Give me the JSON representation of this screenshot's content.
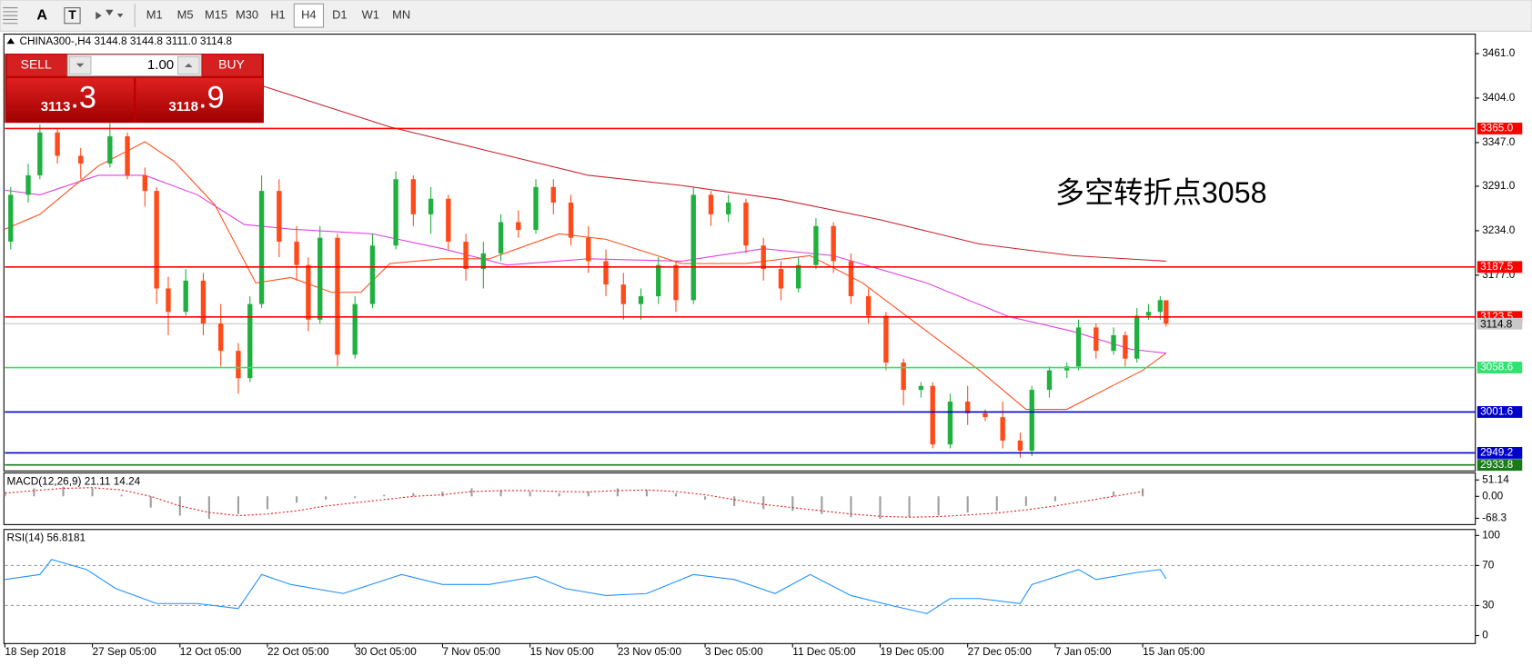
{
  "toolbar": {
    "text_tool": "A",
    "label_tool": "T",
    "timeframes": [
      "M1",
      "M5",
      "M15",
      "M30",
      "H1",
      "H4",
      "D1",
      "W1",
      "MN"
    ],
    "active": "H4"
  },
  "trade_panel": {
    "sell": "SELL",
    "buy": "BUY",
    "volume": "1.00",
    "sell_big": "3113",
    "sell_small": ".3",
    "buy_big": "3118",
    "buy_small": ".9"
  },
  "chart_data": [
    {
      "type": "candlestick",
      "title": "CHINA300-,H4  3144.8 3144.8 3111.0 3114.8",
      "annotation": "多空转折点3058",
      "xlim": [
        0,
        252
      ],
      "ylim": [
        2926,
        3486
      ],
      "up_color": "#20b040",
      "down_color": "#ff4a1a",
      "x": [
        1,
        4,
        6,
        9,
        13,
        18,
        21,
        24,
        26,
        28,
        31,
        34,
        37,
        40,
        42,
        44,
        47,
        50,
        52,
        54,
        57,
        60,
        63,
        67,
        70,
        73,
        76,
        79,
        82,
        85,
        88,
        91,
        94,
        97,
        100,
        103,
        106,
        109,
        112,
        115,
        118,
        121,
        124,
        127,
        130,
        133,
        136,
        139,
        142,
        145,
        148,
        151,
        154,
        157,
        159,
        162,
        165,
        168,
        171,
        174,
        176,
        179,
        182,
        184,
        187,
        190,
        192,
        194,
        196,
        198,
        199
      ],
      "open": [
        3220,
        3280,
        3305,
        3360,
        3330,
        3320,
        3355,
        3305,
        3285,
        3160,
        3130,
        3170,
        3115,
        3080,
        3045,
        3140,
        3285,
        3220,
        3190,
        3120,
        3225,
        3075,
        3140,
        3215,
        3300,
        3255,
        3275,
        3220,
        3185,
        3205,
        3245,
        3235,
        3290,
        3270,
        3225,
        3195,
        3165,
        3140,
        3150,
        3190,
        3145,
        3280,
        3255,
        3270,
        3215,
        3185,
        3160,
        3190,
        3240,
        3195,
        3150,
        3125,
        3065,
        3030,
        3035,
        2960,
        3015,
        3000,
        2995,
        2965,
        2952,
        3030,
        3055,
        3060,
        3110,
        3080,
        3100,
        3070,
        3125,
        3130,
        3144.8
      ],
      "high": [
        3290,
        3320,
        3370,
        3365,
        3340,
        3372,
        3360,
        3315,
        3290,
        3175,
        3185,
        3180,
        3140,
        3090,
        3150,
        3305,
        3300,
        3240,
        3200,
        3240,
        3230,
        3150,
        3230,
        3310,
        3305,
        3290,
        3280,
        3230,
        3220,
        3255,
        3260,
        3300,
        3300,
        3280,
        3240,
        3210,
        3180,
        3160,
        3200,
        3195,
        3290,
        3285,
        3280,
        3275,
        3225,
        3195,
        3200,
        3250,
        3245,
        3205,
        3160,
        3130,
        3070,
        3040,
        3040,
        3025,
        3035,
        3005,
        3015,
        2975,
        3035,
        3060,
        3065,
        3120,
        3115,
        3110,
        3105,
        3135,
        3140,
        3150,
        3144.8
      ],
      "low": [
        3210,
        3270,
        3300,
        3320,
        3300,
        3315,
        3300,
        3265,
        3140,
        3100,
        3125,
        3100,
        3060,
        3025,
        3040,
        3135,
        3200,
        3170,
        3105,
        3115,
        3060,
        3070,
        3135,
        3210,
        3240,
        3230,
        3210,
        3170,
        3160,
        3195,
        3225,
        3230,
        3255,
        3215,
        3180,
        3150,
        3120,
        3120,
        3140,
        3130,
        3140,
        3240,
        3245,
        3205,
        3170,
        3145,
        3155,
        3185,
        3180,
        3140,
        3115,
        3055,
        3010,
        3020,
        2955,
        2955,
        2985,
        2990,
        2955,
        2943,
        2945,
        3020,
        3045,
        3055,
        3070,
        3075,
        3060,
        3065,
        3120,
        3120,
        3111
      ],
      "close": [
        3280,
        3305,
        3360,
        3330,
        3320,
        3355,
        3305,
        3285,
        3160,
        3130,
        3170,
        3115,
        3080,
        3045,
        3140,
        3285,
        3220,
        3190,
        3120,
        3225,
        3075,
        3140,
        3215,
        3300,
        3255,
        3275,
        3220,
        3185,
        3205,
        3245,
        3235,
        3290,
        3270,
        3225,
        3195,
        3165,
        3140,
        3150,
        3190,
        3145,
        3280,
        3255,
        3270,
        3215,
        3185,
        3160,
        3190,
        3240,
        3195,
        3150,
        3125,
        3065,
        3030,
        3035,
        2960,
        3015,
        3000,
        2995,
        2965,
        2952,
        3030,
        3055,
        3060,
        3110,
        3080,
        3100,
        3070,
        3125,
        3130,
        3145,
        3114.8
      ],
      "series": [
        {
          "color": "#c8202a",
          "x": [
            44,
            66,
            83,
            100,
            116,
            133,
            150,
            167,
            183,
            199
          ],
          "values": [
            3420,
            3367,
            3336,
            3305,
            3292,
            3274,
            3248,
            3217,
            3202,
            3195
          ]
        },
        {
          "color": "#e040e0",
          "x": [
            0,
            6,
            16,
            24,
            33,
            41,
            49,
            63,
            75,
            86,
            100,
            116,
            130,
            142,
            158,
            172,
            183,
            193,
            199
          ],
          "values": [
            3286,
            3280,
            3305,
            3305,
            3280,
            3242,
            3236,
            3230,
            3211,
            3190,
            3198,
            3195,
            3211,
            3202,
            3167,
            3124,
            3105,
            3082,
            3077
          ]
        },
        {
          "color": "#ff4d1a",
          "x": [
            0,
            6,
            16,
            24,
            29,
            36,
            43,
            49,
            56,
            61,
            66,
            75,
            83,
            95,
            103,
            116,
            127,
            138,
            147,
            158,
            167,
            175,
            182,
            190,
            195,
            199
          ],
          "values": [
            3236,
            3255,
            3317,
            3348,
            3323,
            3267,
            3167,
            3174,
            3155,
            3155,
            3192,
            3198,
            3198,
            3230,
            3223,
            3192,
            3192,
            3202,
            3167,
            3105,
            3055,
            3005,
            3005,
            3036,
            3055,
            3077
          ]
        }
      ],
      "yticks": [
        {
          "value": 3461,
          "label": "3461.0"
        },
        {
          "value": 3404,
          "label": "3404.0"
        },
        {
          "value": 3347,
          "label": "3347.0"
        },
        {
          "value": 3291,
          "label": "3291.0"
        },
        {
          "value": 3234,
          "label": "3234.0"
        },
        {
          "value": 3177,
          "label": "3177.0"
        }
      ],
      "levels": [
        {
          "value": 3365,
          "label": "3365.0",
          "color": "#ff0000"
        },
        {
          "value": 3187.5,
          "label": "3187.5",
          "color": "#ff0000"
        },
        {
          "value": 3123.5,
          "label": "3123.5",
          "color": "#ff0000"
        },
        {
          "value": 3058.6,
          "label": "3058.6",
          "color": "#33e070"
        },
        {
          "value": 3001.6,
          "label": "3001.6",
          "color": "#0000cc"
        },
        {
          "value": 2949.2,
          "label": "2949.2",
          "color": "#0000cc"
        },
        {
          "value": 2933.8,
          "label": "2933.8",
          "color": "#1a7a1a"
        }
      ],
      "last_price": 3114.8
    },
    {
      "type": "macd",
      "title": "MACD(12,26,9) 21.11 14.24",
      "xlim": [
        0,
        252
      ],
      "ylim": [
        -88,
        73
      ],
      "x": [
        0,
        5,
        10,
        15,
        20,
        25,
        30,
        35,
        40,
        45,
        50,
        55,
        60,
        65,
        70,
        75,
        80,
        85,
        90,
        95,
        100,
        105,
        110,
        115,
        120,
        125,
        130,
        135,
        140,
        145,
        150,
        155,
        160,
        165,
        170,
        175,
        180,
        185,
        190,
        195
      ],
      "main": [
        15,
        25,
        30,
        25,
        5,
        -35,
        -60,
        -70,
        -55,
        -40,
        -20,
        -10,
        -5,
        5,
        10,
        15,
        25,
        20,
        15,
        10,
        15,
        25,
        20,
        10,
        -10,
        -30,
        -40,
        -45,
        -55,
        -65,
        -70,
        -65,
        -60,
        -50,
        -45,
        -30,
        -15,
        0,
        15,
        25
      ],
      "signal": [
        10,
        18,
        25,
        27,
        20,
        0,
        -30,
        -50,
        -60,
        -55,
        -45,
        -30,
        -20,
        -10,
        0,
        5,
        15,
        18,
        18,
        15,
        14,
        18,
        20,
        15,
        5,
        -10,
        -25,
        -35,
        -45,
        -55,
        -62,
        -65,
        -63,
        -58,
        -52,
        -42,
        -30,
        -15,
        0,
        15
      ],
      "color": "#a0a0a0",
      "signal_color": "#e02020",
      "yticks": [
        51.14,
        {
          "value": 0,
          "label": "0.00"
        },
        -68.3
      ]
    },
    {
      "type": "line",
      "title": "RSI(14) 56.8181",
      "xlim": [
        0,
        252
      ],
      "ylim": [
        -8,
        106
      ],
      "color": "#1e90ff",
      "x": [
        0,
        6,
        8,
        14,
        19,
        26,
        33,
        40,
        44,
        49,
        58,
        68,
        75,
        83,
        91,
        96,
        103,
        110,
        118,
        125,
        132,
        138,
        145,
        152,
        158,
        162,
        167,
        174,
        176,
        184,
        187,
        194,
        198,
        199
      ],
      "values": [
        56,
        61,
        76,
        66,
        47,
        32,
        32,
        27,
        61,
        51,
        42,
        61,
        51,
        51,
        59,
        47,
        40,
        42,
        61,
        56,
        42,
        61,
        40,
        30,
        22,
        37,
        37,
        32,
        51,
        66,
        56,
        63,
        66,
        56.8
      ],
      "yticks": [
        100,
        70,
        30,
        0
      ],
      "levels": [
        70,
        30
      ],
      "xticks": [
        {
          "value": 0,
          "label": "18 Sep 2018"
        },
        {
          "value": 15,
          "label": "27 Sep 05:00"
        },
        {
          "value": 30,
          "label": "12 Oct 05:00"
        },
        {
          "value": 45,
          "label": "22 Oct 05:00"
        },
        {
          "value": 60,
          "label": "30 Oct 05:00"
        },
        {
          "value": 75,
          "label": "7 Nov 05:00"
        },
        {
          "value": 90,
          "label": "15 Nov 05:00"
        },
        {
          "value": 105,
          "label": "23 Nov 05:00"
        },
        {
          "value": 120,
          "label": "3 Dec 05:00"
        },
        {
          "value": 135,
          "label": "11 Dec 05:00"
        },
        {
          "value": 150,
          "label": "19 Dec 05:00"
        },
        {
          "value": 165,
          "label": "27 Dec 05:00"
        },
        {
          "value": 180,
          "label": "7 Jan 05:00"
        },
        {
          "value": 195,
          "label": "15 Jan 05:00"
        }
      ]
    }
  ]
}
